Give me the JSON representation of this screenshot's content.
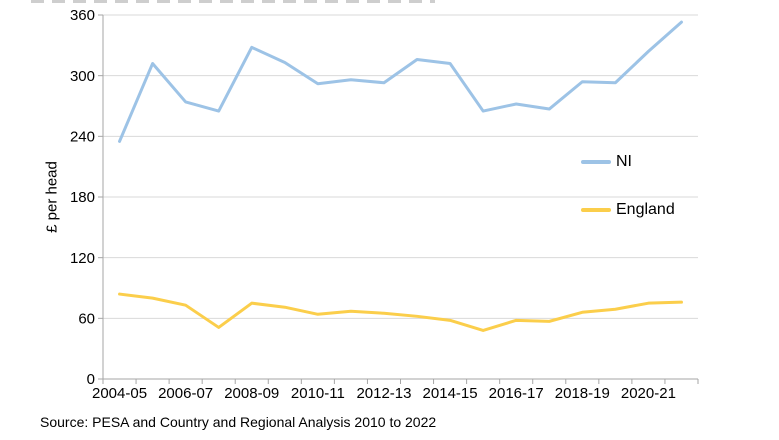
{
  "page": {
    "source_note": "Source: PESA and Country and Regional Analysis 2010 to 2022"
  },
  "chart_data": {
    "type": "line",
    "title": "",
    "ylabel": "£ per head",
    "xlabel": "",
    "ylim": [
      0,
      360
    ],
    "yticks": [
      0,
      60,
      120,
      180,
      240,
      300,
      360
    ],
    "grid": "horizontal",
    "legend_position": "inside-right",
    "categories": [
      "2004-05",
      "2005-06",
      "2006-07",
      "2007-08",
      "2008-09",
      "2009-10",
      "2010-11",
      "2011-12",
      "2012-13",
      "2013-14",
      "2014-15",
      "2015-16",
      "2016-17",
      "2017-18",
      "2018-19",
      "2019-20",
      "2020-21",
      "2021-22"
    ],
    "x_tick_labels": [
      "2004-05",
      "2006-07",
      "2008-09",
      "2010-11",
      "2012-13",
      "2014-15",
      "2016-17",
      "2018-19",
      "2020-21"
    ],
    "series": [
      {
        "name": "NI",
        "color": "#9DC3E6",
        "values": [
          235,
          312,
          274,
          265,
          328,
          313,
          292,
          296,
          293,
          316,
          312,
          265,
          272,
          267,
          294,
          293,
          324,
          353
        ]
      },
      {
        "name": "England",
        "color": "#FBCE4B",
        "values": [
          84,
          80,
          73,
          51,
          75,
          71,
          64,
          67,
          65,
          62,
          58,
          48,
          58,
          57,
          66,
          69,
          75,
          76
        ]
      }
    ],
    "colors": {
      "gridline": "#D9D9D9",
      "axis": "#A6A6A6",
      "tick_text": "#000000"
    }
  }
}
